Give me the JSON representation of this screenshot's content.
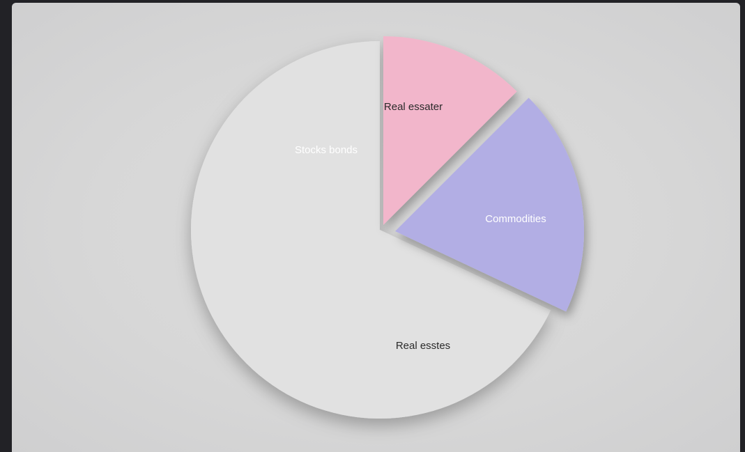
{
  "chart_data": {
    "type": "pie",
    "title": "",
    "slices": [
      {
        "label": "Real essater",
        "value": 12.5,
        "color": "#f2b6cb",
        "label_color": "#2a2a2a",
        "exploded": true
      },
      {
        "label": "Commodities",
        "value": 19.5,
        "color": "#b2aee4",
        "label_color": "#ffffff",
        "exploded": true
      },
      {
        "label": "Real esstes",
        "value": 68,
        "color": "#e1e1e1",
        "label_color": "#2a2a2a",
        "exploded": false
      }
    ],
    "extra_labels": [
      {
        "label": "Stocks bonds",
        "color": "#ffffff"
      }
    ],
    "start_angle": "12 o'clock",
    "direction": "clockwise",
    "legend": "none"
  }
}
